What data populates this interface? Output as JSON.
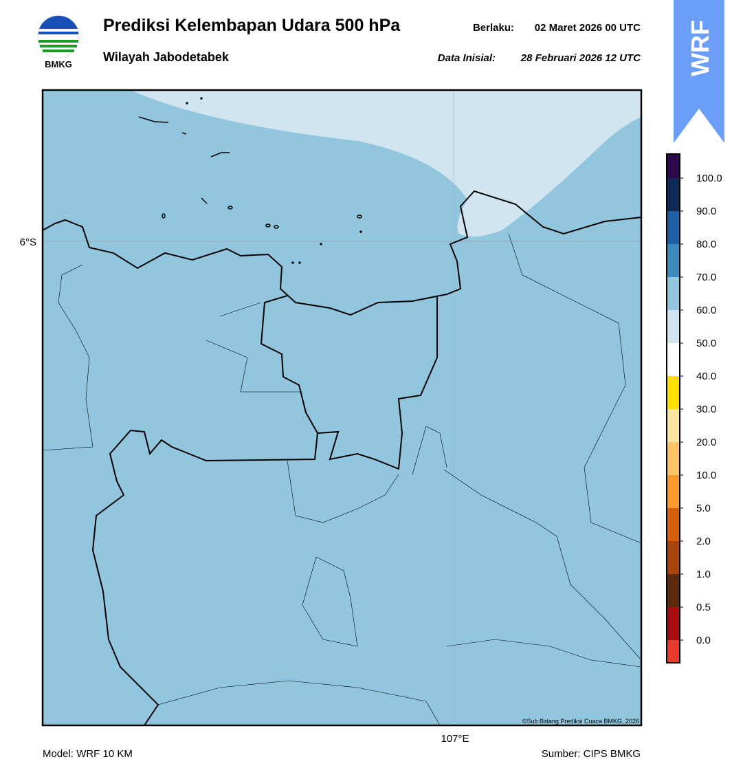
{
  "header": {
    "title": "Prediksi Kelembapan Udara 500 hPa",
    "subtitle": "Wilayah Jabodetabek",
    "valid_label": "Berlaku:",
    "valid_time": "02 Maret 2026 00 UTC",
    "init_label": "Data Inisial:",
    "init_time": "28 Februari 2026 12 UTC",
    "logo_text": "BMKG"
  },
  "badge": {
    "text": "WRF"
  },
  "map": {
    "lat_label": "6°S",
    "lon_label": "107°E",
    "credit": "©Sub Bidang Prediksi Cuaca BMKG, 2026"
  },
  "colorbar": {
    "labels": [
      "100.0",
      "90.0",
      "80.0",
      "70.0",
      "60.0",
      "50.0",
      "40.0",
      "30.0",
      "20.0",
      "10.0",
      "5.0",
      "2.0",
      "1.0",
      "0.5",
      "0.0"
    ],
    "colors": [
      "#2d0a4e",
      "#0d2a55",
      "#1f5fa8",
      "#3a8bc0",
      "#92c5de",
      "#d1e5f0",
      "#ffffff",
      "#ffe000",
      "#fde4a0",
      "#fdc468",
      "#fb9a2c",
      "#d8600c",
      "#a8440c",
      "#5a2a0e",
      "#a80e10",
      "#e83a2c"
    ]
  },
  "footer": {
    "model": "Model: WRF 10 KM",
    "source": "Sumber: CIPS BMKG"
  }
}
